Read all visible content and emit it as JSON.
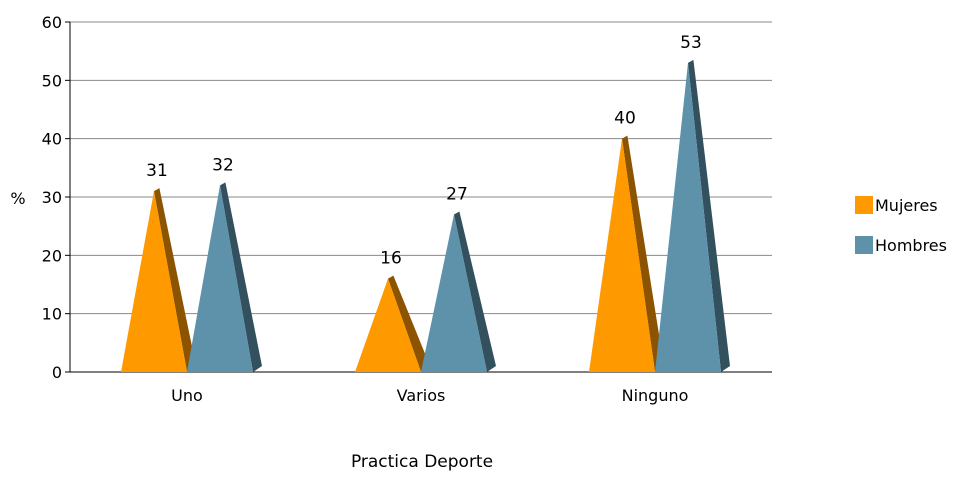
{
  "chart_data": {
    "type": "bar",
    "title": "",
    "xlabel": "Practica Deporte",
    "ylabel": "%",
    "ylim": [
      0,
      60
    ],
    "yticks": [
      0,
      10,
      20,
      30,
      40,
      50,
      60
    ],
    "grid": true,
    "legend_position": "right",
    "categories": [
      "Uno",
      "Varios",
      "Ninguno"
    ],
    "series": [
      {
        "name": "Mujeres",
        "values": [
          31,
          16,
          40
        ],
        "color": "#ff9900"
      },
      {
        "name": "Hombres",
        "values": [
          32,
          27,
          53
        ],
        "color": "#5d92aa"
      }
    ]
  }
}
